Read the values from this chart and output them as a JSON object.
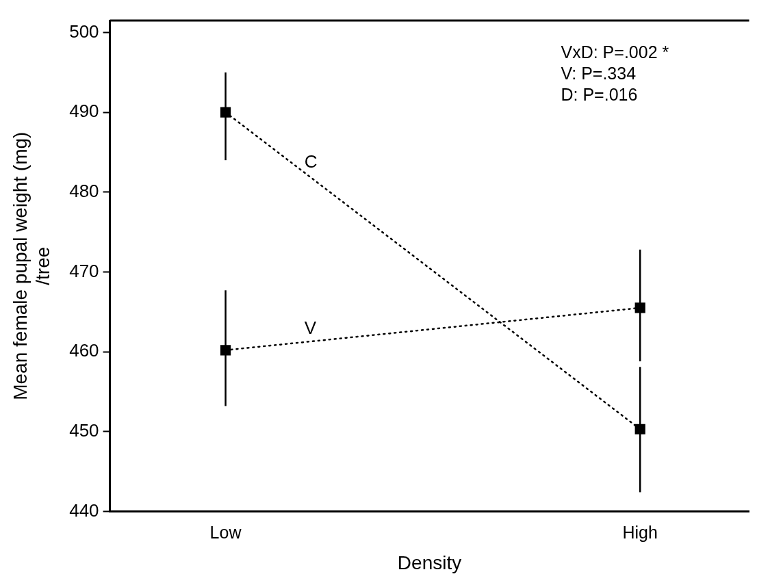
{
  "chart_data": {
    "type": "line",
    "xlabel": "Density",
    "ylabel": "Mean female pupal weight (mg)\n/tree",
    "categories": [
      "Low",
      "High"
    ],
    "series": [
      {
        "name": "C",
        "color": "#000000",
        "values": [
          490,
          450.3
        ],
        "errors": [
          [
            484,
            495
          ],
          [
            442.4,
            458.1
          ]
        ]
      },
      {
        "name": "V",
        "color": "#000000",
        "values": [
          460.2,
          465.5
        ],
        "errors": [
          [
            453.2,
            467.7
          ],
          [
            458.8,
            472.8
          ]
        ]
      }
    ],
    "ylim": [
      440,
      501.5
    ],
    "yticks": [
      440,
      450,
      460,
      470,
      480,
      490,
      500
    ],
    "annotations": [
      "VxD: P=.002 *",
      "V: P=.334",
      "D: P=.016"
    ],
    "marker": "square",
    "line_style": "dotted",
    "legend": false,
    "grid": false
  }
}
